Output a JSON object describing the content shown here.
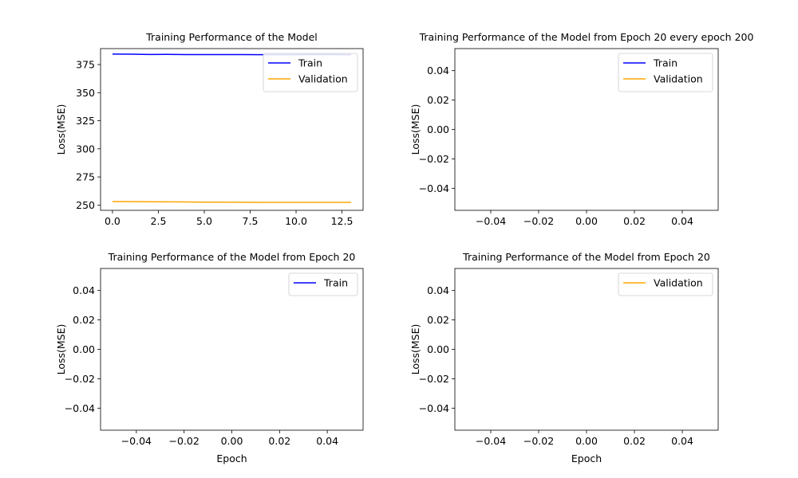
{
  "chart_data": [
    {
      "type": "line",
      "title": "Training Performance of the Model",
      "xlabel": "",
      "ylabel": "Loss(MSE)",
      "xlim": [
        -0.65,
        13.65
      ],
      "ylim": [
        245.3,
        389.2
      ],
      "xticks": [
        0.0,
        2.5,
        5.0,
        7.5,
        10.0,
        12.5
      ],
      "xtick_labels": [
        "0.0",
        "2.5",
        "5.0",
        "7.5",
        "10.0",
        "12.5"
      ],
      "yticks": [
        250,
        275,
        300,
        325,
        350,
        375
      ],
      "ytick_labels": [
        "250",
        "275",
        "300",
        "325",
        "350",
        "375"
      ],
      "legend": "top-right",
      "series": [
        {
          "name": "Train",
          "color": "#0000ff",
          "x": [
            0,
            1,
            2,
            3,
            4,
            5,
            6,
            7,
            8,
            9,
            10,
            11,
            12,
            13
          ],
          "y": [
            384.3,
            384.2,
            384.0,
            384.1,
            383.9,
            383.9,
            383.9,
            383.9,
            383.8,
            383.8,
            383.8,
            383.9,
            383.9,
            383.8
          ]
        },
        {
          "name": "Validation",
          "color": "#ffa500",
          "x": [
            0,
            1,
            2,
            3,
            4,
            5,
            6,
            7,
            8,
            9,
            10,
            11,
            12,
            13
          ],
          "y": [
            253.1,
            253.0,
            252.9,
            252.8,
            252.7,
            252.6,
            252.6,
            252.5,
            252.4,
            252.4,
            252.4,
            252.4,
            252.4,
            252.4
          ]
        }
      ]
    },
    {
      "type": "line",
      "title": "Training Performance of the Model from Epoch 20 every epoch 200",
      "xlabel": "",
      "ylabel": "Loss(MSE)",
      "xlim": [
        -0.055,
        0.055
      ],
      "ylim": [
        -0.055,
        0.055
      ],
      "xticks": [
        -0.04,
        -0.02,
        0.0,
        0.02,
        0.04
      ],
      "xtick_labels": [
        "−0.04",
        "−0.02",
        "0.00",
        "0.02",
        "0.04"
      ],
      "yticks": [
        -0.04,
        -0.02,
        0.0,
        0.02,
        0.04
      ],
      "ytick_labels": [
        "−0.04",
        "−0.02",
        "0.00",
        "0.02",
        "0.04"
      ],
      "legend": "top-right",
      "series": [
        {
          "name": "Train",
          "color": "#0000ff",
          "x": [],
          "y": []
        },
        {
          "name": "Validation",
          "color": "#ffa500",
          "x": [],
          "y": []
        }
      ]
    },
    {
      "type": "line",
      "title": "Training Performance of the Model from Epoch 20",
      "xlabel": "Epoch",
      "ylabel": "Loss(MSE)",
      "xlim": [
        -0.055,
        0.055
      ],
      "ylim": [
        -0.055,
        0.055
      ],
      "xticks": [
        -0.04,
        -0.02,
        0.0,
        0.02,
        0.04
      ],
      "xtick_labels": [
        "−0.04",
        "−0.02",
        "0.00",
        "0.02",
        "0.04"
      ],
      "yticks": [
        -0.04,
        -0.02,
        0.0,
        0.02,
        0.04
      ],
      "ytick_labels": [
        "−0.04",
        "−0.02",
        "0.00",
        "0.02",
        "0.04"
      ],
      "legend": "top-right",
      "series": [
        {
          "name": "Train",
          "color": "#0000ff",
          "x": [],
          "y": []
        }
      ]
    },
    {
      "type": "line",
      "title": "Training Performance of the Model from Epoch 20",
      "xlabel": "Epoch",
      "ylabel": "Loss(MSE)",
      "xlim": [
        -0.055,
        0.055
      ],
      "ylim": [
        -0.055,
        0.055
      ],
      "xticks": [
        -0.04,
        -0.02,
        0.0,
        0.02,
        0.04
      ],
      "xtick_labels": [
        "−0.04",
        "−0.02",
        "0.00",
        "0.02",
        "0.04"
      ],
      "yticks": [
        -0.04,
        -0.02,
        0.0,
        0.02,
        0.04
      ],
      "ytick_labels": [
        "−0.04",
        "−0.02",
        "0.00",
        "0.02",
        "0.04"
      ],
      "legend": "top-right",
      "series": [
        {
          "name": "Validation",
          "color": "#ffa500",
          "x": [],
          "y": []
        }
      ]
    }
  ]
}
